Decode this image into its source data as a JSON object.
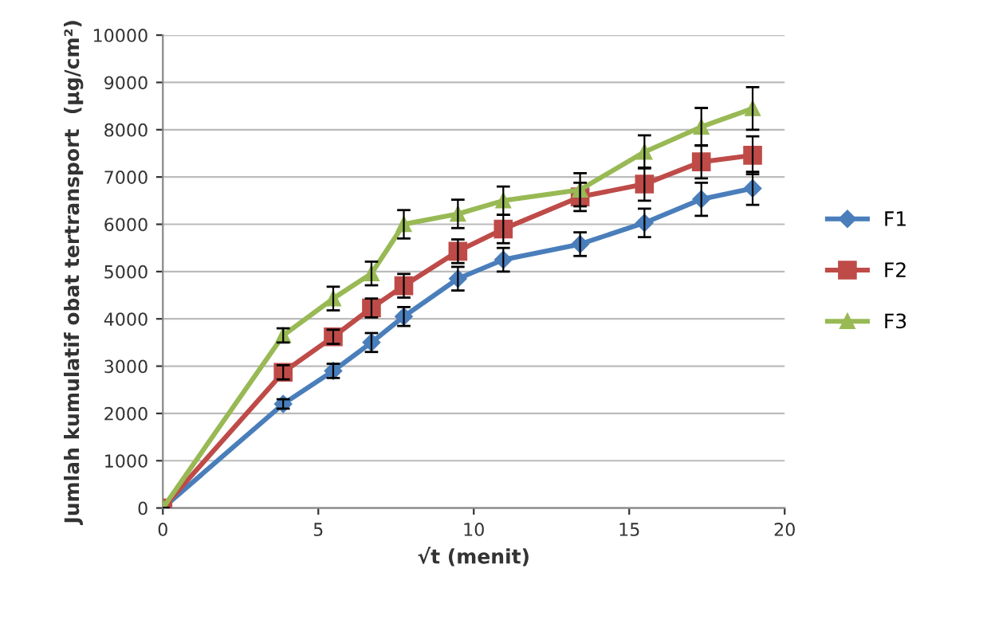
{
  "chart_data": {
    "type": "line",
    "xlabel": "√t (menit)",
    "ylabel": "Jumlah kumulatif obat tertransport  (µg/cm²)",
    "x": [
      0,
      3.87,
      5.48,
      6.71,
      7.75,
      9.49,
      10.95,
      13.42,
      15.49,
      17.32,
      18.97
    ],
    "series": [
      {
        "name": "F1",
        "color": "#4a7ebb",
        "marker": "diamond",
        "values": [
          0,
          2200,
          2900,
          3500,
          4050,
          4850,
          5250,
          5580,
          6030,
          6530,
          6760
        ],
        "errors": [
          0,
          100,
          150,
          200,
          200,
          250,
          250,
          250,
          300,
          350,
          350
        ]
      },
      {
        "name": "F2",
        "color": "#be4b48",
        "marker": "square",
        "values": [
          0,
          2870,
          3620,
          4230,
          4700,
          5430,
          5900,
          6580,
          6850,
          7320,
          7460
        ],
        "errors": [
          0,
          150,
          150,
          200,
          250,
          250,
          300,
          300,
          350,
          350,
          400
        ]
      },
      {
        "name": "F3",
        "color": "#98b954",
        "marker": "triangle",
        "values": [
          0,
          3650,
          4430,
          4960,
          6000,
          6220,
          6500,
          6730,
          7530,
          8060,
          8450
        ],
        "errors": [
          0,
          150,
          250,
          250,
          300,
          300,
          300,
          350,
          350,
          400,
          450
        ]
      }
    ],
    "xlim": [
      0,
      20
    ],
    "xticks": [
      0,
      5,
      10,
      15,
      20
    ],
    "ylim": [
      0,
      10000
    ],
    "yticks": [
      0,
      1000,
      2000,
      3000,
      4000,
      5000,
      6000,
      7000,
      8000,
      9000,
      10000
    ],
    "grid": "y",
    "legend": "right"
  }
}
